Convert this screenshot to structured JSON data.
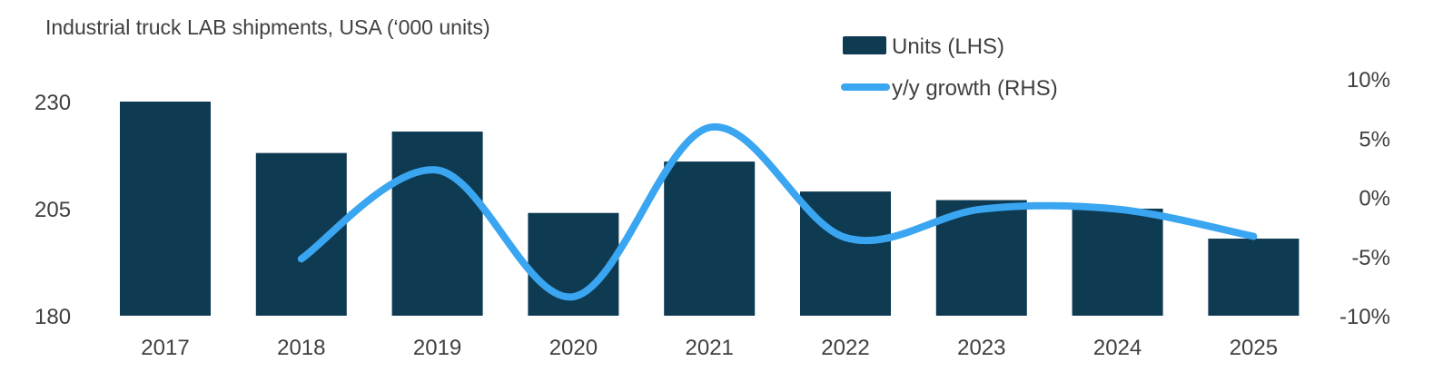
{
  "chart_data": {
    "type": "bar",
    "title": "Industrial truck LAB shipments, USA (‘000 units)",
    "categories": [
      "2017",
      "2018",
      "2019",
      "2020",
      "2021",
      "2022",
      "2023",
      "2024",
      "2025"
    ],
    "series": [
      {
        "name": "Units (LHS)",
        "type": "bar",
        "axis": "left",
        "color": "#0e3a52",
        "values": [
          230,
          218,
          223,
          204,
          216,
          209,
          207,
          205,
          198
        ]
      },
      {
        "name": "y/y growth (RHS)",
        "type": "line",
        "axis": "right",
        "color": "#3aa5f0",
        "values": [
          null,
          -5.2,
          2.3,
          -8.4,
          5.9,
          -3.4,
          -1.0,
          -1.0,
          -3.3
        ]
      }
    ],
    "y_left": {
      "min": 180,
      "max": 230,
      "ticks": [
        180,
        205,
        230
      ],
      "tick_labels": [
        "180",
        "205",
        "230"
      ]
    },
    "y_right": {
      "min": -10,
      "max": 10,
      "ticks": [
        -10,
        -5,
        0,
        5,
        10
      ],
      "tick_labels": [
        "-10%",
        "-5%",
        "0%",
        "5%",
        "10%"
      ]
    },
    "grid": false,
    "legend_position": "top-right"
  }
}
